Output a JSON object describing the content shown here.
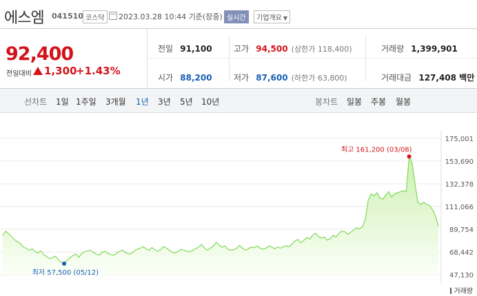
{
  "header": {
    "stock_name": "에스엠",
    "stock_code": "041510",
    "market": "코스닥",
    "timestamp": "2023.03.28 10:44",
    "basis": "기준(장중)",
    "realtime_label": "실시간",
    "company_info_label": "기업개요"
  },
  "price": {
    "current": "92,400",
    "change_label": "전일대비",
    "change": "1,300",
    "change_pct": "+1.43%"
  },
  "stats": {
    "prev_close_label": "전일",
    "prev_close": "91,100",
    "high_label": "고가",
    "high": "94,500",
    "upper_limit": "(상한가 118,400)",
    "volume_label": "거래량",
    "volume": "1,399,901",
    "open_label": "시가",
    "open": "88,200",
    "low_label": "저가",
    "low": "87,600",
    "lower_limit": "(하한가 63,800)",
    "amount_label": "거래대금",
    "amount": "127,408 백만"
  },
  "tabs": {
    "line_label": "선차트",
    "line": [
      "1일",
      "1주일",
      "3개월",
      "1년",
      "3년",
      "5년",
      "10년"
    ],
    "selected": "1년",
    "candle_label": "봉차트",
    "candle": [
      "일봉",
      "주봉",
      "월봉"
    ]
  },
  "colors": {
    "up": "#d3131b",
    "down": "#1a5fb4",
    "line": "#7ed957",
    "fill": "#e6f8d8"
  },
  "chart_data": {
    "type": "area",
    "title": "",
    "xlabel": "",
    "ylabel": "",
    "ylim": [
      47130,
      175001
    ],
    "yticks": [
      175001,
      153690,
      132378,
      111066,
      89754,
      68442,
      47130
    ],
    "ytick_labels": [
      "175,001",
      "153,690",
      "132,378",
      "111,066",
      "89,754",
      "68,442",
      "47,130"
    ],
    "grid": true,
    "max_label": "최고 161,200 (03/08)",
    "min_label": "최저 57,500 (05/12)",
    "volume_label": "거래량",
    "series": [
      {
        "values": [
          84000,
          88000,
          85500,
          83000,
          80000,
          78000,
          76500,
          73000,
          72000,
          70000,
          71500,
          69000,
          67500,
          69500,
          66000,
          64000,
          62000,
          63000,
          64500,
          61000,
          59000,
          57500,
          60500,
          63000,
          65000,
          66500,
          63500,
          67000,
          68500,
          69500,
          70000,
          68000,
          66500,
          65500,
          68000,
          69000,
          67000,
          66000,
          65500,
          67500,
          69000,
          70000,
          68000,
          66500,
          67000,
          69500,
          71000,
          72000,
          73500,
          71500,
          70000,
          72500,
          70500,
          69000,
          70500,
          73500,
          72000,
          70000,
          68000,
          67500,
          69000,
          71000,
          70000,
          69000,
          68500,
          70000,
          71500,
          73000,
          75500,
          72000,
          70000,
          72000,
          74000,
          77500,
          75000,
          73000,
          74000,
          71000,
          70000,
          70500,
          72000,
          74500,
          72000,
          70000,
          71500,
          73000,
          72500,
          74000,
          72000,
          71000,
          72000,
          74000,
          73000,
          71500,
          73000,
          72000,
          73500,
          74000,
          73500,
          76000,
          79000,
          80000,
          77000,
          79500,
          82000,
          80500,
          84000,
          86000,
          83000,
          81500,
          82500,
          79500,
          81000,
          84000,
          82500,
          86000,
          88000,
          87500,
          85000,
          87000,
          89000,
          91000,
          90000,
          92000,
          99000,
          117000,
          123000,
          121000,
          124000,
          119000,
          118000,
          122000,
          125000,
          120000,
          123000,
          124000,
          125000,
          126000,
          125000,
          158000,
          152000,
          132000,
          115000,
          113000,
          115000,
          113000,
          112000,
          108000,
          102000,
          92400
        ]
      }
    ]
  }
}
